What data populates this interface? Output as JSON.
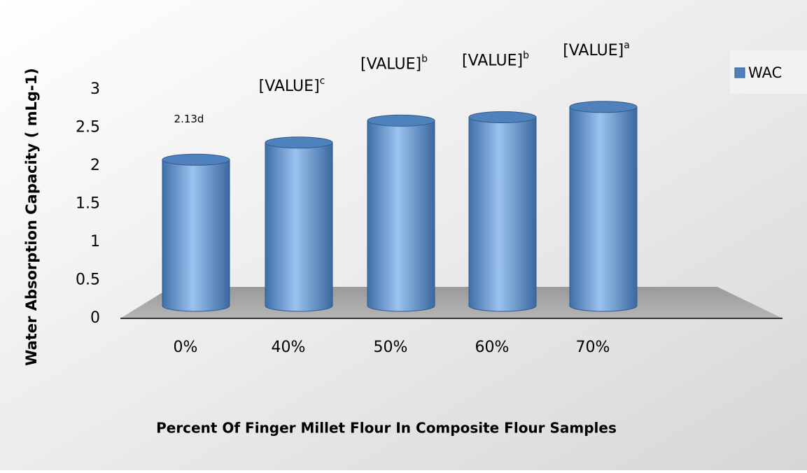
{
  "chart_data": {
    "type": "bar",
    "categories": [
      "0%",
      "40%",
      "50%",
      "60%",
      "70%"
    ],
    "series": [
      {
        "name": "WAC",
        "color": "#4f81bd",
        "values": [
          2.13,
          2.38,
          2.7,
          2.75,
          2.9
        ],
        "value_labels": [
          "2.13d",
          "[VALUE]c",
          "[VALUE]b",
          "[VALUE]b",
          "[VALUE]a"
        ]
      }
    ],
    "ylim": [
      0,
      3
    ],
    "yticks": [
      0,
      0.5,
      1,
      1.5,
      2,
      2.5,
      3
    ],
    "ylabel": "Water Absorption Capacity ( mLg-1)",
    "xlabel": "Percent Of Finger Millet Flour In Composite Flour Samples",
    "legend": "top-right"
  }
}
